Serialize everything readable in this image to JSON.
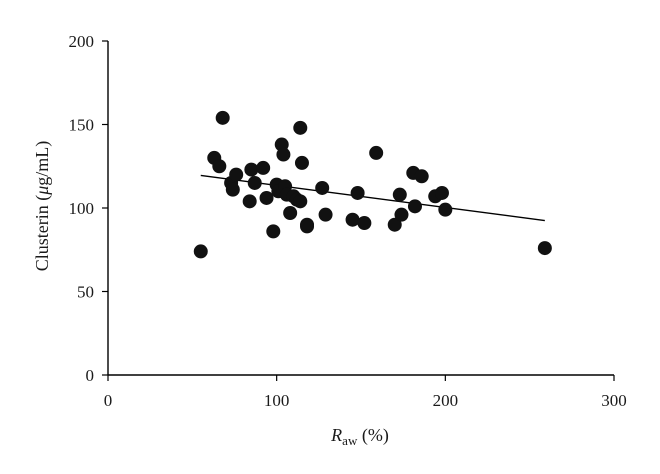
{
  "chart_data": {
    "type": "scatter",
    "title": "",
    "xlabel": {
      "main": "R",
      "sub": "aw",
      "suffix": " (%)"
    },
    "ylabel": {
      "prefix": "Clusterin (",
      "symbol": "μ",
      "suffix": "g/mL)"
    },
    "xlim": [
      0,
      300
    ],
    "ylim": [
      0,
      200
    ],
    "x_ticks": [
      0,
      100,
      200,
      300
    ],
    "y_ticks": [
      0,
      50,
      100,
      150,
      200
    ],
    "grid": false,
    "series": [
      {
        "points": [
          [
            55,
            74
          ],
          [
            63,
            130
          ],
          [
            66,
            125
          ],
          [
            68,
            154
          ],
          [
            73,
            115
          ],
          [
            74,
            111
          ],
          [
            76,
            120
          ],
          [
            84,
            104
          ],
          [
            85,
            123
          ],
          [
            87,
            115
          ],
          [
            92,
            124
          ],
          [
            94,
            106
          ],
          [
            98,
            86
          ],
          [
            100,
            114
          ],
          [
            101,
            110
          ],
          [
            103,
            138
          ],
          [
            104,
            132
          ],
          [
            105,
            113
          ],
          [
            106,
            108
          ],
          [
            108,
            97
          ],
          [
            110,
            107
          ],
          [
            112,
            105
          ],
          [
            114,
            148
          ],
          [
            114,
            104
          ],
          [
            115,
            127
          ],
          [
            118,
            90
          ],
          [
            118,
            89
          ],
          [
            127,
            112
          ],
          [
            129,
            96
          ],
          [
            145,
            93
          ],
          [
            148,
            109
          ],
          [
            152,
            91
          ],
          [
            159,
            133
          ],
          [
            170,
            90
          ],
          [
            173,
            108
          ],
          [
            174,
            96
          ],
          [
            181,
            121
          ],
          [
            182,
            101
          ],
          [
            186,
            119
          ],
          [
            194,
            107
          ],
          [
            198,
            109
          ],
          [
            200,
            99
          ],
          [
            259,
            76
          ]
        ]
      }
    ],
    "trendline": {
      "x": [
        55,
        259
      ],
      "y": [
        119.5,
        92.5
      ]
    }
  }
}
